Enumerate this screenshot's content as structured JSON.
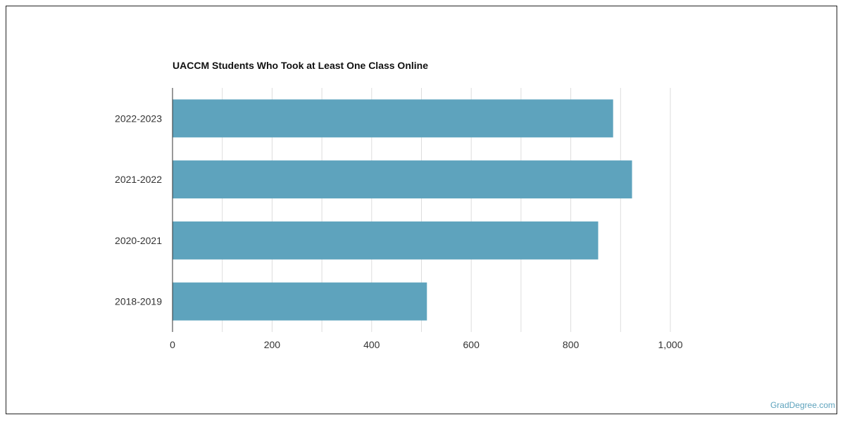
{
  "chart_data": {
    "type": "bar",
    "orientation": "horizontal",
    "title": "UACCM Students Who Took at Least One Class Online",
    "categories": [
      "2022-2023",
      "2021-2022",
      "2020-2021",
      "2018-2019"
    ],
    "values": [
      885,
      923,
      855,
      511
    ],
    "xlim": [
      0,
      1000
    ],
    "x_ticks": [
      0,
      200,
      400,
      600,
      800,
      1000
    ],
    "x_tick_labels": [
      "0",
      "200",
      "400",
      "600",
      "800",
      "1,000"
    ],
    "grid": true,
    "bar_color": "#5ea3bd"
  },
  "footer": {
    "source": "GradDegree.com"
  }
}
